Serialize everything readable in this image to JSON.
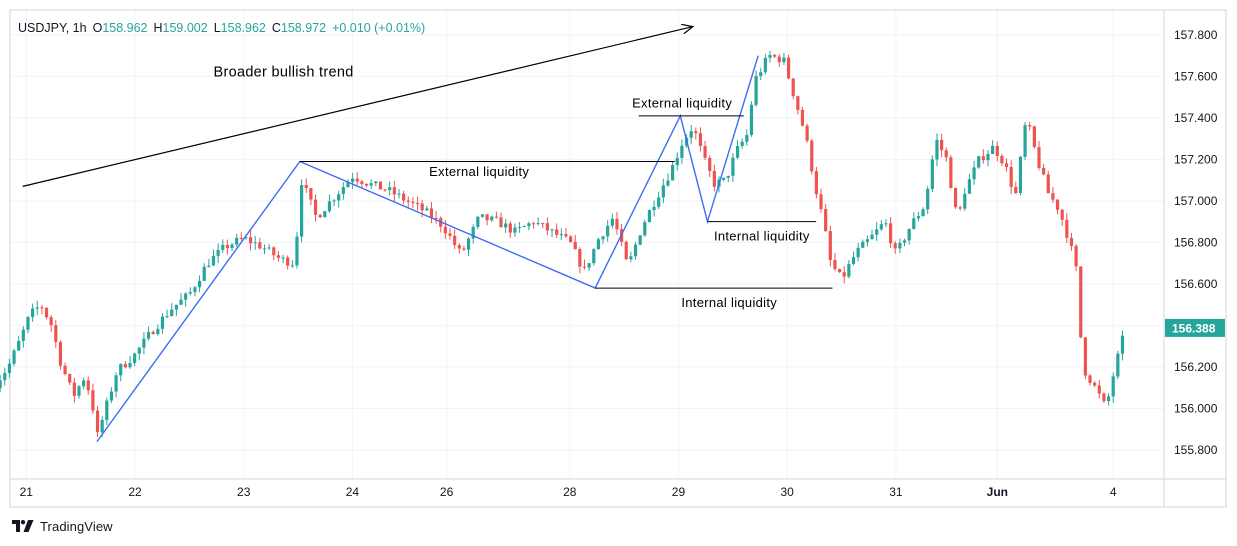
{
  "header": {
    "symbol": "USDJPY",
    "interval": "1h",
    "o_label": "O",
    "o_value": "158.962",
    "h_label": "H",
    "h_value": "159.002",
    "l_label": "L",
    "l_value": "158.962",
    "c_label": "C",
    "c_value": "158.972",
    "change": "+0.010 (+0.01%)"
  },
  "footer": {
    "brand": "TradingView",
    "logo_icon": "tradingview-logo-icon"
  },
  "colors": {
    "up": "#26a69a",
    "down": "#ef5350",
    "trendline": "#3d6df2",
    "annotation": "#000000",
    "grid": "#f0f3fa",
    "axis_text": "#131722",
    "price_tag": "#26a69a"
  },
  "chart_data": {
    "type": "candlestick",
    "title": "",
    "y_range": [
      155.66,
      157.92
    ],
    "x_range": [
      -0.45,
      31.4
    ],
    "y_ticks": [
      155.8,
      156.0,
      156.2,
      156.4,
      156.6,
      156.8,
      157.0,
      157.2,
      157.4,
      157.6,
      157.8
    ],
    "y_tick_labels": [
      "155.800",
      "156.000",
      "156.200",
      "156.400",
      "156.600",
      "156.800",
      "157.000",
      "157.200",
      "157.400",
      "157.600",
      "157.800"
    ],
    "x_ticks": [
      {
        "x": 0,
        "label": "21"
      },
      {
        "x": 3,
        "label": "22"
      },
      {
        "x": 6,
        "label": "23"
      },
      {
        "x": 9,
        "label": "24"
      },
      {
        "x": 11.6,
        "label": "26"
      },
      {
        "x": 15,
        "label": "28"
      },
      {
        "x": 18,
        "label": "29"
      },
      {
        "x": 21,
        "label": "30"
      },
      {
        "x": 24,
        "label": "31"
      },
      {
        "x": 26.8,
        "label": "Jun"
      },
      {
        "x": 30,
        "label": "4"
      }
    ],
    "last_price": 156.388,
    "last_price_label": "156.388",
    "grid": true,
    "legend": "none",
    "price_path": [
      [
        -0.85,
        156.12
      ],
      [
        -0.5,
        156.2
      ],
      [
        -0.2,
        156.32
      ],
      [
        0.1,
        156.45
      ],
      [
        0.4,
        156.5
      ],
      [
        0.7,
        156.4
      ],
      [
        0.95,
        156.22
      ],
      [
        1.3,
        156.06
      ],
      [
        1.6,
        156.15
      ],
      [
        1.8,
        156.05
      ],
      [
        1.95,
        155.86
      ],
      [
        2.5,
        156.18
      ],
      [
        3.0,
        156.26
      ],
      [
        3.5,
        156.38
      ],
      [
        4.0,
        156.48
      ],
      [
        4.5,
        156.55
      ],
      [
        5.0,
        156.7
      ],
      [
        5.5,
        156.78
      ],
      [
        6.0,
        156.82
      ],
      [
        6.5,
        156.78
      ],
      [
        7.0,
        156.72
      ],
      [
        7.4,
        156.7
      ],
      [
        7.6,
        157.1
      ],
      [
        8.0,
        156.92
      ],
      [
        8.5,
        157.02
      ],
      [
        9.0,
        157.12
      ],
      [
        9.5,
        157.08
      ],
      [
        10.0,
        157.05
      ],
      [
        10.5,
        157.0
      ],
      [
        11.0,
        156.95
      ],
      [
        11.5,
        156.88
      ],
      [
        12.0,
        156.74
      ],
      [
        12.5,
        156.92
      ],
      [
        13.0,
        156.9
      ],
      [
        13.5,
        156.85
      ],
      [
        14.0,
        156.9
      ],
      [
        14.5,
        156.85
      ],
      [
        15.0,
        156.8
      ],
      [
        15.4,
        156.66
      ],
      [
        15.8,
        156.82
      ],
      [
        16.2,
        156.92
      ],
      [
        16.6,
        156.68
      ],
      [
        17.0,
        156.88
      ],
      [
        17.4,
        157.02
      ],
      [
        17.8,
        157.15
      ],
      [
        18.1,
        157.28
      ],
      [
        18.4,
        157.36
      ],
      [
        18.7,
        157.2
      ],
      [
        19.0,
        157.08
      ],
      [
        19.3,
        157.1
      ],
      [
        19.6,
        157.24
      ],
      [
        19.9,
        157.32
      ],
      [
        20.1,
        157.58
      ],
      [
        20.5,
        157.7
      ],
      [
        20.9,
        157.68
      ],
      [
        21.2,
        157.5
      ],
      [
        21.5,
        157.32
      ],
      [
        21.8,
        157.05
      ],
      [
        22.0,
        156.9
      ],
      [
        22.2,
        156.7
      ],
      [
        22.5,
        156.62
      ],
      [
        22.9,
        156.75
      ],
      [
        23.3,
        156.82
      ],
      [
        23.7,
        156.9
      ],
      [
        24.0,
        156.74
      ],
      [
        24.4,
        156.88
      ],
      [
        24.8,
        156.98
      ],
      [
        25.1,
        157.3
      ],
      [
        25.4,
        157.2
      ],
      [
        25.7,
        156.9
      ],
      [
        25.9,
        157.05
      ],
      [
        26.3,
        157.2
      ],
      [
        26.7,
        157.26
      ],
      [
        27.0,
        157.18
      ],
      [
        27.3,
        157.02
      ],
      [
        27.6,
        157.4
      ],
      [
        27.9,
        157.2
      ],
      [
        28.2,
        157.04
      ],
      [
        28.5,
        156.96
      ],
      [
        28.8,
        156.8
      ],
      [
        29.0,
        156.65
      ],
      [
        29.15,
        156.2
      ],
      [
        29.5,
        156.1
      ],
      [
        29.8,
        156.0
      ],
      [
        30.05,
        156.2
      ],
      [
        30.35,
        156.39
      ]
    ],
    "trendlines": [
      {
        "name": "broader-bullish-trend-arrow",
        "points": [
          [
            -0.1,
            157.07
          ],
          [
            18.4,
            157.84
          ]
        ]
      },
      {
        "name": "zigzag-swing-structure",
        "points": [
          [
            1.95,
            155.84
          ],
          [
            7.55,
            157.19
          ],
          [
            15.7,
            156.58
          ],
          [
            18.05,
            157.41
          ],
          [
            18.8,
            156.9
          ],
          [
            20.2,
            157.7
          ]
        ]
      }
    ],
    "levels": [
      {
        "name": "external-liquidity-upper",
        "x": [
          7.55,
          17.9
        ],
        "y": 157.19
      },
      {
        "name": "internal-liquidity-lower",
        "x": [
          15.7,
          22.25
        ],
        "y": 156.58
      },
      {
        "name": "external-liquidity-top",
        "x": [
          16.9,
          19.8
        ],
        "y": 157.41
      },
      {
        "name": "internal-liquidity-upper",
        "x": [
          18.8,
          21.8
        ],
        "y": 156.9
      }
    ],
    "annotations": [
      {
        "name": "broader-bullish-trend-label",
        "text": "Broader bullish trend",
        "x": 7.1,
        "y": 157.6
      },
      {
        "name": "external-liquidity-label-1",
        "text": "External liquidity",
        "x": 12.5,
        "y": 157.12
      },
      {
        "name": "external-liquidity-label-2",
        "text": "External liquidity",
        "x": 18.1,
        "y": 157.45
      },
      {
        "name": "internal-liquidity-label-1",
        "text": "Internal liquidity",
        "x": 20.3,
        "y": 156.81
      },
      {
        "name": "internal-liquidity-label-2",
        "text": "Internal liquidity",
        "x": 19.4,
        "y": 156.49
      }
    ]
  }
}
